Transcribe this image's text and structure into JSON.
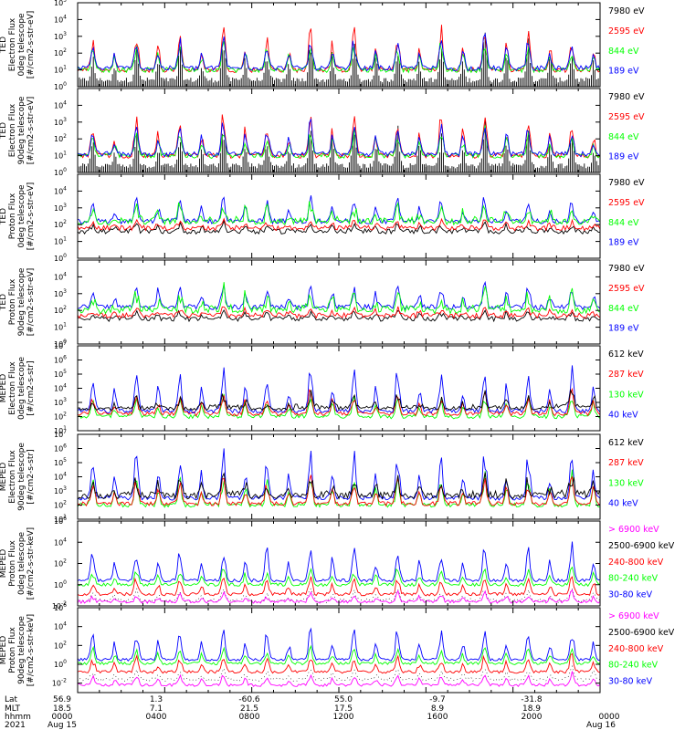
{
  "colors": {
    "blue": "#0000ff",
    "red": "#ff0000",
    "green": "#00ff00",
    "black": "#000000",
    "magenta": "#ff00ff"
  },
  "footer": {
    "row_labels": [
      "Lat",
      "MLT",
      "hhmm",
      "2021"
    ],
    "lat": [
      "56.9",
      "1.3",
      "-60.6",
      "55.0",
      "-9.7",
      "-31.8"
    ],
    "mlt": [
      "18.5",
      "7.1",
      "21.5",
      "17.5",
      "8.9",
      "18.9"
    ],
    "hhmm": [
      "0000",
      "0400",
      "0800",
      "1200",
      "1600",
      "2000",
      "0000"
    ],
    "dates": [
      "Aug 15",
      "Aug 16"
    ]
  },
  "chart_data": [
    {
      "type": "line",
      "ylabel_lines": [
        "TED",
        "Electron Flux",
        "0deg telescope",
        "[#/cm2-s-str-eV]"
      ],
      "yscale": "log",
      "ylim_exp": [
        0,
        5
      ],
      "yticks": [
        {
          "b": "10",
          "e": "0"
        },
        {
          "b": "10",
          "e": "1"
        },
        {
          "b": "10",
          "e": "2"
        },
        {
          "b": "10",
          "e": "3"
        },
        {
          "b": "10",
          "e": "4"
        },
        {
          "b": "10",
          "e": "5"
        }
      ],
      "series": [
        {
          "name": "7980 eV",
          "color": "black",
          "baseline_exp": 0.4,
          "peaks": [
            1.8,
            2.6,
            2.4,
            3.2,
            2.0,
            3.4,
            2.8,
            3.0,
            2.6,
            3.6,
            3.1,
            2.2
          ],
          "shape": "dense-bars"
        },
        {
          "name": "2595 eV",
          "color": "red",
          "baseline_exp": 1.0,
          "peaks": [
            2.8,
            3.9,
            3.6,
            4.0,
            3.2,
            4.1,
            3.8,
            3.4,
            3.9,
            4.2,
            3.6,
            3.0
          ]
        },
        {
          "name": "844 eV",
          "color": "green",
          "baseline_exp": 1.0,
          "peaks": [
            2.4,
            3.0,
            2.8,
            3.1,
            2.5,
            3.2,
            2.9,
            2.7,
            3.0,
            3.3,
            2.8,
            2.4
          ]
        },
        {
          "name": "189 eV",
          "color": "blue",
          "baseline_exp": 1.1,
          "peaks": [
            2.6,
            3.2,
            3.0,
            3.3,
            2.7,
            3.4,
            3.1,
            2.9,
            3.2,
            3.5,
            3.0,
            2.6
          ]
        }
      ]
    },
    {
      "type": "line",
      "ylabel_lines": [
        "TED",
        "Electron Flux",
        "90deg telescope",
        "[#/cm2-s-str-eV]"
      ],
      "yscale": "log",
      "ylim_exp": [
        0,
        5
      ],
      "yticks": [
        {
          "b": "10",
          "e": "0"
        },
        {
          "b": "10",
          "e": "1"
        },
        {
          "b": "10",
          "e": "2"
        },
        {
          "b": "10",
          "e": "3"
        },
        {
          "b": "10",
          "e": "4"
        }
      ],
      "series": [
        {
          "name": "7980 eV",
          "color": "black",
          "baseline_exp": 0.4,
          "peaks": [
            1.9,
            2.5,
            2.3,
            3.0,
            2.1,
            3.2,
            2.7,
            2.9,
            2.5,
            3.4,
            3.0,
            2.3
          ],
          "shape": "dense-bars"
        },
        {
          "name": "2595 eV",
          "color": "red",
          "baseline_exp": 1.0,
          "peaks": [
            2.9,
            3.8,
            3.5,
            4.2,
            3.3,
            4.1,
            3.7,
            3.6,
            3.8,
            4.3,
            3.5,
            3.1
          ]
        },
        {
          "name": "844 eV",
          "color": "green",
          "baseline_exp": 1.0,
          "peaks": [
            2.3,
            2.9,
            2.7,
            3.0,
            2.4,
            3.1,
            2.8,
            2.6,
            2.9,
            3.2,
            2.7,
            2.3
          ]
        },
        {
          "name": "189 eV",
          "color": "blue",
          "baseline_exp": 1.1,
          "peaks": [
            2.7,
            3.3,
            3.1,
            3.5,
            2.8,
            3.6,
            3.2,
            3.0,
            3.3,
            3.6,
            3.1,
            2.7
          ]
        }
      ]
    },
    {
      "type": "line",
      "ylabel_lines": [
        "TED",
        "Proton Flux",
        "0deg telescope",
        "[#/cm2-s-str-eV]"
      ],
      "yscale": "log",
      "ylim_exp": [
        0,
        5
      ],
      "yticks": [
        {
          "b": "10",
          "e": "0"
        },
        {
          "b": "10",
          "e": "1"
        },
        {
          "b": "10",
          "e": "2"
        },
        {
          "b": "10",
          "e": "3"
        },
        {
          "b": "10",
          "e": "4"
        }
      ],
      "series": [
        {
          "name": "7980 eV",
          "color": "black",
          "baseline_exp": 1.6,
          "peaks": [
            2.0,
            2.2,
            2.1,
            2.3,
            2.0,
            2.2,
            2.1,
            2.2,
            2.0,
            2.3,
            2.1,
            2.0
          ]
        },
        {
          "name": "2595 eV",
          "color": "red",
          "baseline_exp": 1.8,
          "peaks": [
            2.2,
            2.4,
            2.3,
            2.4,
            2.2,
            2.4,
            2.3,
            2.3,
            2.2,
            2.5,
            2.3,
            2.2
          ]
        },
        {
          "name": "189 eV",
          "color": "blue",
          "baseline_exp": 2.2,
          "peaks": [
            3.6,
            4.0,
            3.8,
            3.9,
            3.7,
            4.1,
            3.8,
            3.9,
            3.6,
            4.0,
            3.8,
            3.7
          ]
        },
        {
          "name": "844 eV",
          "color": "green",
          "baseline_exp": 1.8,
          "peaks": [
            2.8,
            3.1,
            3.0,
            3.2,
            2.9,
            3.2,
            3.0,
            3.1,
            2.9,
            3.2,
            3.0,
            2.9
          ],
          "shape": "noisy"
        }
      ]
    },
    {
      "type": "line",
      "ylabel_lines": [
        "TED",
        "Proton Flux",
        "90deg telescope",
        "[#/cm2-s-str-eV]"
      ],
      "yscale": "log",
      "ylim_exp": [
        0,
        5
      ],
      "yticks": [
        {
          "b": "10",
          "e": "0"
        },
        {
          "b": "10",
          "e": "1"
        },
        {
          "b": "10",
          "e": "2"
        },
        {
          "b": "10",
          "e": "3"
        },
        {
          "b": "10",
          "e": "4"
        }
      ],
      "series": [
        {
          "name": "7980 eV",
          "color": "black",
          "baseline_exp": 1.5,
          "peaks": [
            1.9,
            2.1,
            2.0,
            2.2,
            1.9,
            2.1,
            2.0,
            2.1,
            1.9,
            2.2,
            2.0,
            1.9
          ]
        },
        {
          "name": "2595 eV",
          "color": "red",
          "baseline_exp": 1.7,
          "peaks": [
            2.1,
            2.3,
            2.2,
            2.3,
            2.1,
            2.3,
            2.2,
            2.2,
            2.1,
            2.4,
            2.2,
            2.1
          ]
        },
        {
          "name": "189 eV",
          "color": "blue",
          "baseline_exp": 2.2,
          "peaks": [
            3.5,
            4.1,
            3.9,
            3.8,
            3.6,
            4.0,
            3.7,
            3.9,
            3.5,
            4.0,
            3.7,
            3.6
          ]
        },
        {
          "name": "844 eV",
          "color": "green",
          "baseline_exp": 1.6,
          "peaks": [
            2.7,
            3.0,
            2.9,
            3.1,
            2.8,
            3.1,
            2.9,
            3.0,
            2.8,
            3.1,
            2.9,
            2.8
          ],
          "shape": "noisy"
        }
      ]
    },
    {
      "type": "line",
      "ylabel_lines": [
        "MEPED",
        "Electron Flux",
        "0deg telescope",
        "[#/cm2-s-str]"
      ],
      "yscale": "log",
      "ylim_exp": [
        1,
        7
      ],
      "yticks": [
        {
          "b": "10",
          "e": "1"
        },
        {
          "b": "10",
          "e": "2"
        },
        {
          "b": "10",
          "e": "3"
        },
        {
          "b": "10",
          "e": "4"
        },
        {
          "b": "10",
          "e": "5"
        },
        {
          "b": "10",
          "e": "6"
        },
        {
          "b": "10",
          "e": "7"
        }
      ],
      "series": [
        {
          "name": "130 keV",
          "color": "green",
          "baseline_exp": 2.0,
          "peaks": [
            3.2,
            3.6,
            3.4,
            3.8,
            3.3,
            4.0,
            3.5,
            3.7,
            3.4,
            3.9,
            3.5,
            4.2
          ]
        },
        {
          "name": "287 keV",
          "color": "red",
          "baseline_exp": 2.2,
          "peaks": [
            3.4,
            3.8,
            3.6,
            4.0,
            3.5,
            4.3,
            3.7,
            3.9,
            3.6,
            4.1,
            3.7,
            4.5
          ]
        },
        {
          "name": "40 keV",
          "color": "blue",
          "baseline_exp": 2.4,
          "peaks": [
            5.5,
            5.8,
            5.6,
            5.9,
            5.4,
            6.0,
            5.7,
            5.8,
            5.5,
            5.9,
            5.6,
            6.1
          ]
        },
        {
          "name": "612 keV",
          "color": "black",
          "baseline_exp": 2.3,
          "peaks": [
            3.0,
            3.3,
            3.1,
            3.4,
            3.0,
            3.5,
            3.2,
            3.3,
            3.1,
            3.4,
            3.2,
            3.6
          ],
          "shape": "noisy"
        }
      ]
    },
    {
      "type": "line",
      "ylabel_lines": [
        "MEPED",
        "Electron Flux",
        "90deg telescope",
        "[#/cm2-s-str]"
      ],
      "yscale": "log",
      "ylim_exp": [
        1,
        7
      ],
      "yticks": [
        {
          "b": "10",
          "e": "1"
        },
        {
          "b": "10",
          "e": "2"
        },
        {
          "b": "10",
          "e": "3"
        },
        {
          "b": "10",
          "e": "4"
        },
        {
          "b": "10",
          "e": "5"
        },
        {
          "b": "10",
          "e": "6"
        },
        {
          "b": "10",
          "e": "7"
        }
      ],
      "series": [
        {
          "name": "130 keV",
          "color": "green",
          "baseline_exp": 2.0,
          "peaks": [
            4.0,
            4.3,
            4.1,
            4.4,
            4.0,
            4.5,
            4.2,
            4.3,
            4.1,
            4.4,
            4.2,
            4.6
          ]
        },
        {
          "name": "287 keV",
          "color": "red",
          "baseline_exp": 2.1,
          "peaks": [
            3.8,
            4.1,
            3.9,
            4.3,
            3.8,
            4.4,
            4.0,
            4.2,
            3.9,
            4.3,
            4.0,
            4.5
          ]
        },
        {
          "name": "40 keV",
          "color": "blue",
          "baseline_exp": 2.5,
          "peaks": [
            5.8,
            6.0,
            5.9,
            6.1,
            5.7,
            6.2,
            5.9,
            6.0,
            5.8,
            6.1,
            5.9,
            6.3
          ]
        },
        {
          "name": "612 keV",
          "color": "black",
          "baseline_exp": 2.2,
          "peaks": [
            3.4,
            3.7,
            3.5,
            3.8,
            3.4,
            3.9,
            3.6,
            3.7,
            3.5,
            3.8,
            3.6,
            4.0
          ],
          "shape": "noisy"
        }
      ]
    },
    {
      "type": "line",
      "ylabel_lines": [
        "MEPED",
        "Proton Flux",
        "0deg telescope",
        "[#/cm2-s-str-keV]"
      ],
      "yscale": "log",
      "ylim_exp": [
        -2,
        6
      ],
      "yticks": [
        {
          "b": "10",
          "e": "-2"
        },
        {
          "b": "10",
          "e": "0"
        },
        {
          "b": "10",
          "e": "2"
        },
        {
          "b": "10",
          "e": "4"
        },
        {
          "b": "10",
          "e": "6"
        }
      ],
      "series": [
        {
          "name": "2500-6900 keV",
          "color": "black",
          "baseline_exp": -1.5,
          "peaks": [
            -0.8,
            -0.5,
            -0.7,
            -0.4,
            -0.8,
            -0.3,
            -0.6,
            -0.5,
            -0.7,
            -0.4,
            -0.6,
            -0.2
          ],
          "shape": "dots"
        },
        {
          "name": "> 6900 keV",
          "color": "magenta",
          "baseline_exp": -1.6,
          "peaks": [
            -1.0,
            -0.8,
            -0.9,
            -0.7,
            -1.0,
            -0.6,
            -0.8,
            -0.7,
            -0.9,
            -0.6,
            -0.8,
            -0.5
          ]
        },
        {
          "name": "240-800 keV",
          "color": "red",
          "baseline_exp": -0.9,
          "peaks": [
            0.6,
            1.0,
            0.8,
            1.1,
            0.7,
            1.2,
            0.9,
            1.0,
            0.8,
            1.1,
            0.9,
            1.3
          ]
        },
        {
          "name": "80-240 keV",
          "color": "green",
          "baseline_exp": 0.0,
          "peaks": [
            1.5,
            1.8,
            1.6,
            1.9,
            1.5,
            2.0,
            1.7,
            1.8,
            1.6,
            1.9,
            1.7,
            2.1
          ]
        },
        {
          "name": "30-80 keV",
          "color": "blue",
          "baseline_exp": 0.4,
          "peaks": [
            3.8,
            4.1,
            3.9,
            4.2,
            3.7,
            4.3,
            4.0,
            4.1,
            3.8,
            4.2,
            3.9,
            4.4
          ]
        }
      ]
    },
    {
      "type": "line",
      "ylabel_lines": [
        "MEPED",
        "Proton Flux",
        "90deg telescope",
        "[#/cm2-s-str-keV]"
      ],
      "yscale": "log",
      "ylim_exp": [
        -3,
        6
      ],
      "yticks": [
        {
          "b": "10",
          "e": "-2"
        },
        {
          "b": "10",
          "e": "0"
        },
        {
          "b": "10",
          "e": "2"
        },
        {
          "b": "10",
          "e": "4"
        },
        {
          "b": "10",
          "e": "6"
        }
      ],
      "series": [
        {
          "name": "2500-6900 keV",
          "color": "black",
          "baseline_exp": -1.6,
          "peaks": [
            -0.9,
            -0.6,
            -0.8,
            -0.5,
            -0.9,
            -0.4,
            -0.7,
            -0.6,
            -0.8,
            -0.5,
            -0.7,
            -0.3
          ],
          "shape": "dots"
        },
        {
          "name": "> 6900 keV",
          "color": "magenta",
          "baseline_exp": -2.2,
          "peaks": [
            -1.2,
            -1.0,
            -1.1,
            -0.9,
            -1.2,
            -0.8,
            -1.0,
            -0.9,
            -1.1,
            -0.8,
            -1.0,
            -0.7
          ]
        },
        {
          "name": "240-800 keV",
          "color": "red",
          "baseline_exp": -0.8,
          "peaks": [
            0.7,
            1.1,
            0.9,
            1.2,
            0.8,
            1.3,
            1.0,
            1.1,
            0.9,
            1.2,
            1.0,
            1.4
          ]
        },
        {
          "name": "80-240 keV",
          "color": "green",
          "baseline_exp": 0.1,
          "peaks": [
            1.8,
            2.1,
            1.9,
            2.2,
            1.8,
            2.3,
            2.0,
            2.1,
            1.9,
            2.2,
            2.0,
            2.4
          ]
        },
        {
          "name": "30-80 keV",
          "color": "blue",
          "baseline_exp": 0.5,
          "peaks": [
            3.9,
            4.2,
            4.0,
            4.3,
            3.8,
            4.4,
            4.1,
            4.2,
            3.9,
            4.3,
            4.0,
            4.5
          ]
        }
      ]
    }
  ]
}
